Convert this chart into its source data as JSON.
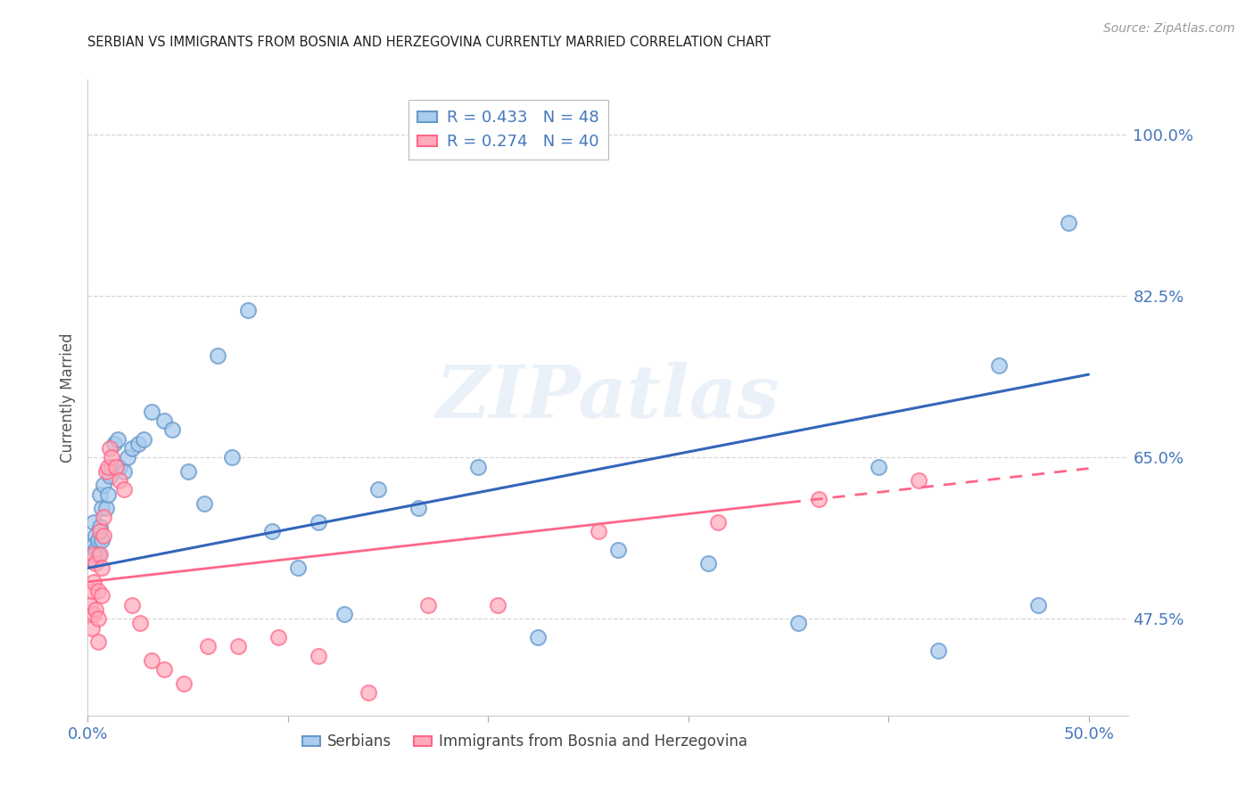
{
  "title": "SERBIAN VS IMMIGRANTS FROM BOSNIA AND HERZEGOVINA CURRENTLY MARRIED CORRELATION CHART",
  "source": "Source: ZipAtlas.com",
  "ylabel": "Currently Married",
  "ytick_labels": [
    "47.5%",
    "65.0%",
    "82.5%",
    "100.0%"
  ],
  "ytick_values": [
    0.475,
    0.65,
    0.825,
    1.0
  ],
  "xtick_labels": [
    "0.0%",
    "",
    "",
    "",
    "",
    "50.0%"
  ],
  "xtick_values": [
    0.0,
    0.1,
    0.2,
    0.3,
    0.4,
    0.5
  ],
  "xlim": [
    0.0,
    0.52
  ],
  "ylim": [
    0.37,
    1.06
  ],
  "blue_scatter_x": [
    0.002,
    0.003,
    0.003,
    0.004,
    0.004,
    0.005,
    0.005,
    0.006,
    0.006,
    0.007,
    0.007,
    0.008,
    0.009,
    0.01,
    0.011,
    0.012,
    0.013,
    0.015,
    0.016,
    0.018,
    0.02,
    0.022,
    0.025,
    0.028,
    0.032,
    0.038,
    0.042,
    0.05,
    0.058,
    0.065,
    0.072,
    0.08,
    0.092,
    0.105,
    0.115,
    0.128,
    0.145,
    0.165,
    0.195,
    0.225,
    0.265,
    0.31,
    0.355,
    0.395,
    0.425,
    0.455,
    0.475,
    0.49
  ],
  "blue_scatter_y": [
    0.54,
    0.555,
    0.58,
    0.55,
    0.565,
    0.545,
    0.56,
    0.575,
    0.61,
    0.56,
    0.595,
    0.62,
    0.595,
    0.61,
    0.63,
    0.64,
    0.665,
    0.67,
    0.64,
    0.635,
    0.65,
    0.66,
    0.665,
    0.67,
    0.7,
    0.69,
    0.68,
    0.635,
    0.6,
    0.76,
    0.65,
    0.81,
    0.57,
    0.53,
    0.58,
    0.48,
    0.615,
    0.595,
    0.64,
    0.455,
    0.55,
    0.535,
    0.47,
    0.64,
    0.44,
    0.75,
    0.49,
    0.905
  ],
  "pink_scatter_x": [
    0.001,
    0.002,
    0.002,
    0.003,
    0.003,
    0.003,
    0.004,
    0.004,
    0.005,
    0.005,
    0.005,
    0.006,
    0.006,
    0.007,
    0.007,
    0.008,
    0.008,
    0.009,
    0.01,
    0.011,
    0.012,
    0.014,
    0.016,
    0.018,
    0.022,
    0.026,
    0.032,
    0.038,
    0.048,
    0.06,
    0.075,
    0.095,
    0.115,
    0.14,
    0.17,
    0.205,
    0.255,
    0.315,
    0.365,
    0.415
  ],
  "pink_scatter_y": [
    0.49,
    0.505,
    0.465,
    0.515,
    0.48,
    0.545,
    0.535,
    0.485,
    0.505,
    0.45,
    0.475,
    0.57,
    0.545,
    0.5,
    0.53,
    0.565,
    0.585,
    0.635,
    0.64,
    0.66,
    0.65,
    0.64,
    0.625,
    0.615,
    0.49,
    0.47,
    0.43,
    0.42,
    0.405,
    0.445,
    0.445,
    0.455,
    0.435,
    0.395,
    0.49,
    0.49,
    0.57,
    0.58,
    0.605,
    0.625
  ],
  "blue_trend_x": [
    0.0,
    0.5
  ],
  "blue_trend_y": [
    0.53,
    0.74
  ],
  "pink_trend_x": [
    0.0,
    0.5
  ],
  "pink_trend_y": [
    0.515,
    0.638
  ],
  "pink_trend_solid_end": 0.35,
  "blue_color": "#6699cc",
  "blue_face": "#aaccee",
  "blue_line": "#3366bb",
  "pink_color": "#ff6688",
  "pink_face": "#ffaabb",
  "pink_line": "#ff6688",
  "background_color": "#ffffff",
  "grid_color": "#cccccc",
  "title_color": "#222222",
  "tick_color": "#4477bb",
  "ylabel_color": "#555555",
  "watermark_text": "ZIPatlas",
  "watermark_color": "#99bbdd",
  "source_text": "Source: ZipAtlas.com",
  "legend1_label": "R = 0.433   N = 48",
  "legend2_label": "R = 0.274   N = 40",
  "bottom_legend1": "Serbians",
  "bottom_legend2": "Immigrants from Bosnia and Herzegovina"
}
